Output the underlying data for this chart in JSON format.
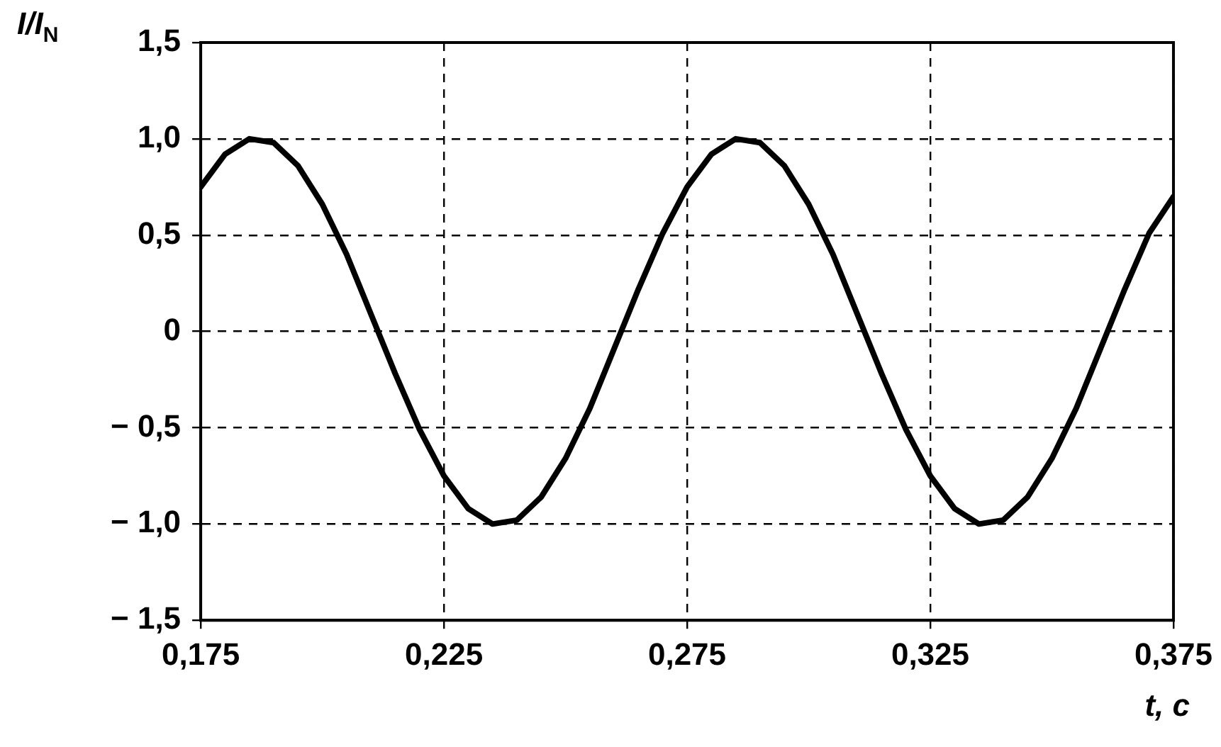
{
  "chart_data": {
    "type": "line",
    "xlabel": "t, c",
    "ylabel": "I/I$_{N}$",
    "x": [
      0.175,
      0.18,
      0.185,
      0.19,
      0.195,
      0.2,
      0.205,
      0.21,
      0.215,
      0.22,
      0.225,
      0.23,
      0.235,
      0.24,
      0.245,
      0.25,
      0.255,
      0.26,
      0.265,
      0.27,
      0.275,
      0.28,
      0.285,
      0.29,
      0.295,
      0.3,
      0.305,
      0.31,
      0.315,
      0.32,
      0.325,
      0.33,
      0.335,
      0.34,
      0.345,
      0.35,
      0.355,
      0.36,
      0.365,
      0.37,
      0.375
    ],
    "series": [
      {
        "color": "#000000",
        "values": [
          0.75,
          0.92,
          1.0,
          0.98,
          0.86,
          0.66,
          0.4,
          0.09,
          -0.22,
          -0.51,
          -0.75,
          -0.92,
          -1.0,
          -0.98,
          -0.86,
          -0.66,
          -0.4,
          -0.09,
          0.22,
          0.51,
          0.75,
          0.92,
          1.0,
          0.98,
          0.86,
          0.66,
          0.4,
          0.09,
          -0.22,
          -0.51,
          -0.75,
          -0.92,
          -1.0,
          -0.98,
          -0.86,
          -0.66,
          -0.4,
          -0.09,
          0.22,
          0.51,
          0.7
        ]
      }
    ],
    "xlim": [
      0.175,
      0.375
    ],
    "xticks": [
      {
        "value": 0.175,
        "label": "0,175"
      },
      {
        "value": 0.225,
        "label": "0,225"
      },
      {
        "value": 0.275,
        "label": "0,275"
      },
      {
        "value": 0.325,
        "label": "0,325"
      },
      {
        "value": 0.375,
        "label": "0,375"
      }
    ],
    "ylim": [
      -1.5,
      1.5
    ],
    "yticks": [
      {
        "value": -1.5,
        "label": "− 1,5"
      },
      {
        "value": -1,
        "label": "− 1,0"
      },
      {
        "value": -0.5,
        "label": "− 0,5"
      },
      {
        "value": 0,
        "label": "0"
      },
      {
        "value": 0.5,
        "label": "0,5"
      },
      {
        "value": 1,
        "label": "1,0"
      },
      {
        "value": 1.5,
        "label": "1,5"
      }
    ],
    "grid": true,
    "legend": false,
    "marker": "none",
    "line_style": "solid"
  }
}
